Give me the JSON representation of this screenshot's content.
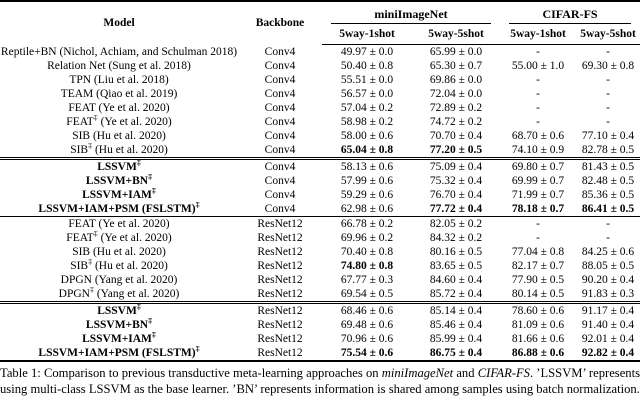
{
  "page": {
    "background": "#ffffff",
    "text_color": "#000000"
  },
  "table": {
    "headers": {
      "model": "Model",
      "backbone": "Backbone",
      "group1": "miniImageNet",
      "group2": "CIFAR-FS",
      "sub": [
        "5way-1shot",
        "5way-5shot",
        "5way-1shot",
        "5way-5shot"
      ]
    },
    "sections": [
      {
        "rule_before": "none",
        "rows": [
          {
            "name": "Reptile+BN (Nichol, Achiam, and Schulman 2018)",
            "sup": "",
            "cite": "",
            "bold": false,
            "backbone": "Conv4",
            "cells": [
              {
                "v": "49.97 ± 0.0",
                "b": false
              },
              {
                "v": "65.99 ± 0.0",
                "b": false
              },
              {
                "v": "-",
                "b": false
              },
              {
                "v": "-",
                "b": false
              }
            ]
          },
          {
            "name": "Relation Net (Sung et al. 2018)",
            "sup": "",
            "cite": "",
            "bold": false,
            "backbone": "Conv4",
            "cells": [
              {
                "v": "50.40 ± 0.8",
                "b": false
              },
              {
                "v": "65.30 ± 0.7",
                "b": false
              },
              {
                "v": "55.00 ± 1.0",
                "b": false
              },
              {
                "v": "69.30 ± 0.8",
                "b": false
              }
            ]
          },
          {
            "name": "TPN (Liu et al. 2018)",
            "sup": "",
            "cite": "",
            "bold": false,
            "backbone": "Conv4",
            "cells": [
              {
                "v": "55.51 ± 0.0",
                "b": false
              },
              {
                "v": "69.86 ± 0.0",
                "b": false
              },
              {
                "v": "-",
                "b": false
              },
              {
                "v": "-",
                "b": false
              }
            ]
          },
          {
            "name": "TEAM (Qiao et al. 2019)",
            "sup": "",
            "cite": "",
            "bold": false,
            "backbone": "Conv4",
            "cells": [
              {
                "v": "56.57 ± 0.0",
                "b": false
              },
              {
                "v": "72.04 ± 0.0",
                "b": false
              },
              {
                "v": "-",
                "b": false
              },
              {
                "v": "-",
                "b": false
              }
            ]
          },
          {
            "name": "FEAT (Ye et al. 2020)",
            "sup": "",
            "cite": "",
            "bold": false,
            "backbone": "Conv4",
            "cells": [
              {
                "v": "57.04 ± 0.2",
                "b": false
              },
              {
                "v": "72.89 ± 0.2",
                "b": false
              },
              {
                "v": "-",
                "b": false
              },
              {
                "v": "-",
                "b": false
              }
            ]
          },
          {
            "name": "FEAT",
            "sup": "‡",
            "cite": " (Ye et al. 2020)",
            "bold": false,
            "backbone": "Conv4",
            "cells": [
              {
                "v": "58.98 ± 0.2",
                "b": false
              },
              {
                "v": "74.72 ± 0.2",
                "b": false
              },
              {
                "v": "-",
                "b": false
              },
              {
                "v": "-",
                "b": false
              }
            ]
          },
          {
            "name": "SIB (Hu et al. 2020)",
            "sup": "",
            "cite": "",
            "bold": false,
            "backbone": "Conv4",
            "cells": [
              {
                "v": "58.00 ± 0.6",
                "b": false
              },
              {
                "v": "70.70 ± 0.4",
                "b": false
              },
              {
                "v": "68.70 ± 0.6",
                "b": false
              },
              {
                "v": "77.10 ± 0.4",
                "b": false
              }
            ]
          },
          {
            "name": "SIB",
            "sup": "‡",
            "cite": " (Hu et al. 2020)",
            "bold": false,
            "backbone": "Conv4",
            "cells": [
              {
                "v": "65.04 ± 0.8",
                "b": true
              },
              {
                "v": "77.20 ± 0.5",
                "b": true
              },
              {
                "v": "74.10 ± 0.9",
                "b": false
              },
              {
                "v": "82.78 ± 0.5",
                "b": false
              }
            ]
          }
        ]
      },
      {
        "rule_before": "double",
        "rows": [
          {
            "name": "LSSVM",
            "sup": "‡",
            "cite": "",
            "bold": true,
            "backbone": "Conv4",
            "cells": [
              {
                "v": "58.13 ± 0.6",
                "b": false
              },
              {
                "v": "75.09 ± 0.4",
                "b": false
              },
              {
                "v": "69.80 ± 0.7",
                "b": false
              },
              {
                "v": "81.43 ± 0.5",
                "b": false
              }
            ]
          },
          {
            "name": "LSSVM+BN",
            "sup": "‡",
            "cite": "",
            "bold": true,
            "backbone": "Conv4",
            "cells": [
              {
                "v": "57.99 ± 0.6",
                "b": false
              },
              {
                "v": "75.32 ± 0.4",
                "b": false
              },
              {
                "v": "69.99 ± 0.7",
                "b": false
              },
              {
                "v": "82.48 ± 0.5",
                "b": false
              }
            ]
          },
          {
            "name": "LSSVM+IAM",
            "sup": "‡",
            "cite": "",
            "bold": true,
            "backbone": "Conv4",
            "cells": [
              {
                "v": "59.29 ± 0.6",
                "b": false
              },
              {
                "v": "76.70 ± 0.4",
                "b": false
              },
              {
                "v": "71.99 ± 0.7",
                "b": false
              },
              {
                "v": "85.36 ± 0.5",
                "b": false
              }
            ]
          },
          {
            "name": "LSSVM+IAM+PSM (FSLSTM)",
            "sup": "‡",
            "cite": "",
            "bold": true,
            "backbone": "Conv4",
            "cells": [
              {
                "v": "62.98 ± 0.6",
                "b": false
              },
              {
                "v": "77.72 ± 0.4",
                "b": true
              },
              {
                "v": "78.18 ± 0.7",
                "b": true
              },
              {
                "v": "86.41 ± 0.5",
                "b": true
              }
            ]
          }
        ]
      },
      {
        "rule_before": "single",
        "rows": [
          {
            "name": "FEAT (Ye et al. 2020)",
            "sup": "",
            "cite": "",
            "bold": false,
            "backbone": "ResNet12",
            "cells": [
              {
                "v": "66.78 ± 0.2",
                "b": false
              },
              {
                "v": "82.05 ± 0.2",
                "b": false
              },
              {
                "v": "-",
                "b": false
              },
              {
                "v": "-",
                "b": false
              }
            ]
          },
          {
            "name": "FEAT",
            "sup": "‡",
            "cite": " (Ye et al. 2020)",
            "bold": false,
            "backbone": "ResNet12",
            "cells": [
              {
                "v": "69.96 ± 0.2",
                "b": false
              },
              {
                "v": "84.32 ± 0.2",
                "b": false
              },
              {
                "v": "-",
                "b": false
              },
              {
                "v": "-",
                "b": false
              }
            ]
          },
          {
            "name": "SIB (Hu et al. 2020)",
            "sup": "",
            "cite": "",
            "bold": false,
            "backbone": "ResNet12",
            "cells": [
              {
                "v": "70.40 ± 0.8",
                "b": false
              },
              {
                "v": "80.16 ± 0.5",
                "b": false
              },
              {
                "v": "77.04 ± 0.8",
                "b": false
              },
              {
                "v": "84.25 ± 0.6",
                "b": false
              }
            ]
          },
          {
            "name": "SIB",
            "sup": "‡",
            "cite": " (Hu et al. 2020)",
            "bold": false,
            "backbone": "ResNet12",
            "cells": [
              {
                "v": "74.80 ± 0.8",
                "b": true
              },
              {
                "v": "83.65 ± 0.5",
                "b": false
              },
              {
                "v": "82.17 ± 0.7",
                "b": false
              },
              {
                "v": "88.05 ± 0.5",
                "b": false
              }
            ]
          },
          {
            "name": "DPGN (Yang et al. 2020)",
            "sup": "",
            "cite": "",
            "bold": false,
            "backbone": "ResNet12",
            "cells": [
              {
                "v": "67.77 ± 0.3",
                "b": false
              },
              {
                "v": "84.60 ± 0.4",
                "b": false
              },
              {
                "v": "77.90 ± 0.5",
                "b": false
              },
              {
                "v": "90.20 ± 0.4",
                "b": false
              }
            ]
          },
          {
            "name": "DPGN",
            "sup": "‡",
            "cite": " (Yang et al. 2020)",
            "bold": false,
            "backbone": "ResNet12",
            "cells": [
              {
                "v": "69.54 ± 0.5",
                "b": false
              },
              {
                "v": "85.72 ± 0.4",
                "b": false
              },
              {
                "v": "80.14 ± 0.5",
                "b": false
              },
              {
                "v": "91.83 ± 0.3",
                "b": false
              }
            ]
          }
        ]
      },
      {
        "rule_before": "double",
        "rows": [
          {
            "name": "LSSVM",
            "sup": "‡",
            "cite": "",
            "bold": true,
            "backbone": "ResNet12",
            "cells": [
              {
                "v": "68.46 ± 0.6",
                "b": false
              },
              {
                "v": "85.14 ± 0.4",
                "b": false
              },
              {
                "v": "78.60 ± 0.6",
                "b": false
              },
              {
                "v": "91.17 ± 0.4",
                "b": false
              }
            ]
          },
          {
            "name": "LSSVM+BN",
            "sup": "‡",
            "cite": "",
            "bold": true,
            "backbone": "ResNet12",
            "cells": [
              {
                "v": "69.48 ± 0.6",
                "b": false
              },
              {
                "v": "85.46 ± 0.4",
                "b": false
              },
              {
                "v": "81.09 ± 0.6",
                "b": false
              },
              {
                "v": "91.40 ± 0.4",
                "b": false
              }
            ]
          },
          {
            "name": "LSSVM+IAM",
            "sup": "‡",
            "cite": "",
            "bold": true,
            "backbone": "ResNet12",
            "cells": [
              {
                "v": "70.96 ± 0.6",
                "b": false
              },
              {
                "v": "85.99 ± 0.4",
                "b": false
              },
              {
                "v": "81.66 ± 0.6",
                "b": false
              },
              {
                "v": "92.01 ± 0.4",
                "b": false
              }
            ]
          },
          {
            "name": "LSSVM+IAM+PSM (FSLSTM)",
            "sup": "‡",
            "cite": "",
            "bold": true,
            "backbone": "ResNet12",
            "cells": [
              {
                "v": "75.54 ± 0.6",
                "b": true
              },
              {
                "v": "86.75 ± 0.4",
                "b": true
              },
              {
                "v": "86.88 ± 0.6",
                "b": true
              },
              {
                "v": "92.82 ± 0.4",
                "b": true
              }
            ]
          }
        ]
      }
    ]
  },
  "caption": {
    "parts": [
      {
        "t": "Table 1: Comparison to previous transductive meta-learning approaches on ",
        "i": false
      },
      {
        "t": "miniImageNet",
        "i": true
      },
      {
        "t": " and ",
        "i": false
      },
      {
        "t": "CIFAR-FS",
        "i": true
      },
      {
        "t": ". ’LSSVM’ represents using multi-class LSSVM as the base learner. ’BN’ represents information is shared among samples using batch normalization.",
        "i": false
      }
    ]
  }
}
